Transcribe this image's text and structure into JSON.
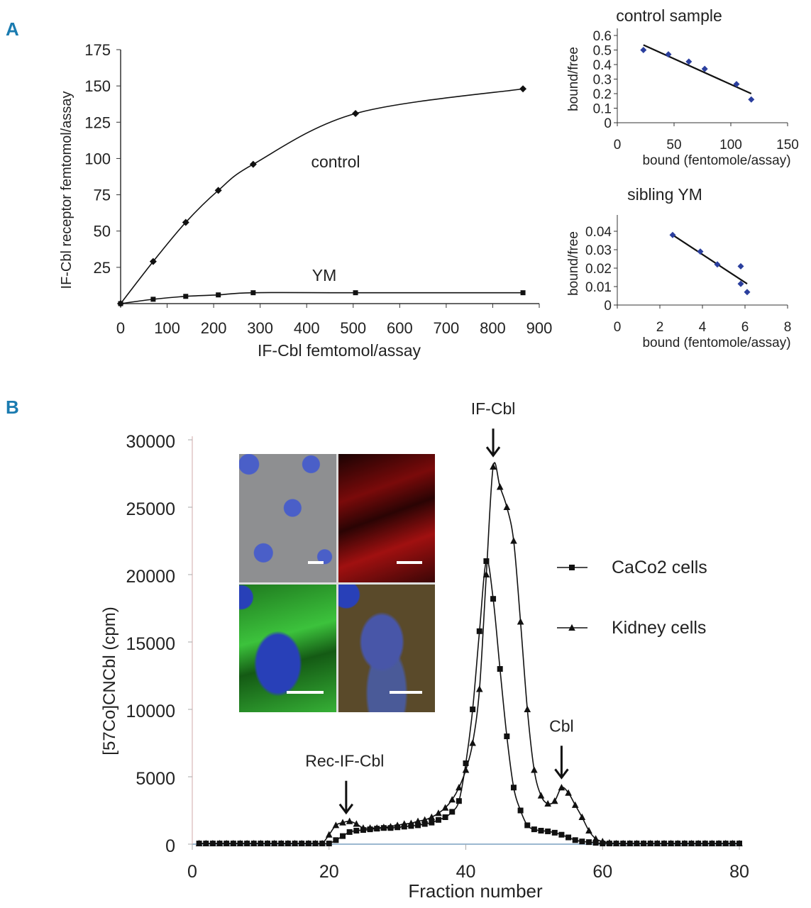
{
  "panel_labels": [
    "A",
    "B"
  ],
  "chart_data": [
    {
      "type": "line",
      "panel": "A",
      "xlabel": "IF-Cbl femtomol/assay",
      "ylabel": "IF-Cbl receptor femtomol/assay",
      "xlim": [
        0,
        900
      ],
      "ylim": [
        0,
        175
      ],
      "xticks": [
        "0",
        "100",
        "200",
        "300",
        "400",
        "500",
        "600",
        "700",
        "800",
        "900"
      ],
      "yticks": [
        "25",
        "50",
        "75",
        "100",
        "125",
        "150",
        "175"
      ],
      "series": [
        {
          "name": "control",
          "marker": "diamond",
          "x": [
            0,
            70,
            140,
            210,
            285,
            505,
            865
          ],
          "y": [
            0,
            29,
            56,
            78,
            96,
            131,
            148
          ]
        },
        {
          "name": "YM",
          "marker": "square",
          "x": [
            0,
            70,
            140,
            210,
            285,
            505,
            865
          ],
          "y": [
            0,
            3,
            5,
            6,
            7.5,
            7.5,
            7.5
          ]
        }
      ]
    },
    {
      "type": "scatter",
      "title": "control sample",
      "xlabel": "bound (fentomole/assay)",
      "ylabel": "bound/free",
      "xlim": [
        0,
        150
      ],
      "ylim": [
        0,
        0.6
      ],
      "xticks": [
        "0",
        "50",
        "100",
        "150"
      ],
      "yticks": [
        "0",
        "0.1",
        "0.2",
        "0.3",
        "0.4",
        "0.5",
        "0.6"
      ],
      "x": [
        23,
        45,
        63,
        77,
        105,
        118
      ],
      "y": [
        0.5,
        0.47,
        0.42,
        0.37,
        0.265,
        0.16
      ],
      "fit": {
        "x": [
          23,
          118
        ],
        "y": [
          0.535,
          0.2
        ]
      },
      "point_color": "#2b3f9e"
    },
    {
      "type": "scatter",
      "title": "sibling YM",
      "xlabel": "bound (fentomole/assay)",
      "ylabel": "bound/free",
      "xlim": [
        0,
        8
      ],
      "ylim": [
        0,
        0.045
      ],
      "xticks": [
        "0",
        "2",
        "4",
        "6",
        "8"
      ],
      "yticks": [
        "0",
        "0.01",
        "0.02",
        "0.03",
        "0.04"
      ],
      "x": [
        2.6,
        3.9,
        4.7,
        5.8,
        5.8,
        6.1
      ],
      "y": [
        0.038,
        0.029,
        0.022,
        0.021,
        0.0115,
        0.007
      ],
      "fit": {
        "x": [
          2.6,
          6.1
        ],
        "y": [
          0.038,
          0.0115
        ]
      },
      "point_color": "#2b3f9e"
    },
    {
      "type": "line",
      "panel": "B",
      "xlabel": "Fraction number",
      "ylabel": "[57Co]CNCbl (cpm)",
      "xlim": [
        0,
        80
      ],
      "ylim": [
        0,
        30000
      ],
      "xticks": [
        "0",
        "20",
        "40",
        "60",
        "80"
      ],
      "yticks": [
        "0",
        "5000",
        "10000",
        "15000",
        "20000",
        "25000",
        "30000"
      ],
      "annotations": [
        {
          "text": "Rec-IF-Cbl",
          "x": 22.5,
          "y": 1700
        },
        {
          "text": "IF-Cbl",
          "x": 44,
          "y": 28200
        },
        {
          "text": "Cbl",
          "x": 54,
          "y": 4300
        }
      ],
      "series": [
        {
          "name": "CaCo2 cells",
          "marker": "square",
          "y": [
            50,
            50,
            50,
            50,
            50,
            50,
            50,
            50,
            50,
            50,
            50,
            50,
            50,
            50,
            50,
            50,
            50,
            50,
            50,
            50,
            300,
            600,
            900,
            1000,
            1050,
            1100,
            1150,
            1200,
            1200,
            1250,
            1300,
            1350,
            1400,
            1500,
            1600,
            1800,
            2000,
            2400,
            3200,
            6000,
            10000,
            15800,
            21000,
            18200,
            13000,
            8000,
            4200,
            2500,
            1400,
            1100,
            1000,
            950,
            850,
            700,
            500,
            300,
            200,
            150,
            100,
            50,
            50,
            50,
            50,
            50,
            50,
            50,
            50,
            50,
            50,
            50,
            50,
            50,
            50,
            50,
            50,
            50,
            50,
            50,
            50,
            50
          ]
        },
        {
          "name": "Kidney cells",
          "marker": "triangle",
          "y": [
            50,
            50,
            50,
            50,
            50,
            50,
            50,
            50,
            50,
            50,
            50,
            50,
            50,
            50,
            50,
            50,
            50,
            50,
            50,
            700,
            1400,
            1600,
            1700,
            1500,
            1200,
            1200,
            1200,
            1250,
            1300,
            1400,
            1500,
            1550,
            1700,
            1800,
            2000,
            2300,
            2700,
            3300,
            4200,
            5500,
            7500,
            11500,
            20000,
            28000,
            26500,
            25000,
            22500,
            16500,
            10000,
            5500,
            3600,
            3000,
            3200,
            4200,
            3800,
            2900,
            2000,
            1000,
            400,
            200,
            100,
            50,
            50,
            50,
            50,
            50,
            50,
            50,
            50,
            50,
            50,
            50,
            50,
            50,
            50,
            50,
            50,
            50,
            50,
            50
          ]
        }
      ]
    }
  ]
}
